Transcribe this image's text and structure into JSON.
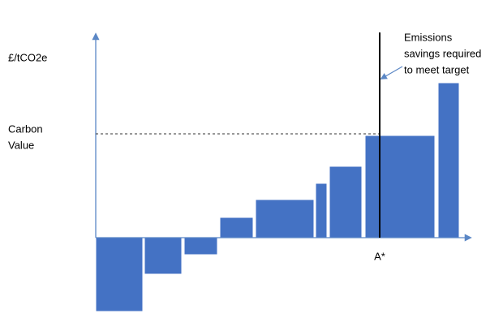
{
  "chart_data": {
    "type": "bar",
    "y_label": "£/tCO2e",
    "carbon_value_label": [
      "Carbon",
      "Value"
    ],
    "target_label": [
      "Emissions",
      "savings required",
      "to meet target"
    ],
    "target_x_label": "A*",
    "x": [
      0,
      6.0,
      10.9,
      15.3,
      19.7,
      27.1,
      28.8,
      33.2,
      42.2
    ],
    "widths": [
      5.8,
      4.6,
      4.1,
      4.1,
      7.2,
      1.4,
      4.0,
      8.6,
      2.6
    ],
    "values": [
      -9.1,
      -4.5,
      -2.1,
      2.5,
      4.7,
      6.7,
      8.8,
      12.6,
      19.1
    ],
    "color": "#4472c4",
    "axis_color": "#5b87c5",
    "carbon_value": 12.8,
    "target_x": 35.0,
    "xlim": [
      0,
      46.2
    ],
    "ylim": [
      -9.6,
      25.1
    ]
  }
}
